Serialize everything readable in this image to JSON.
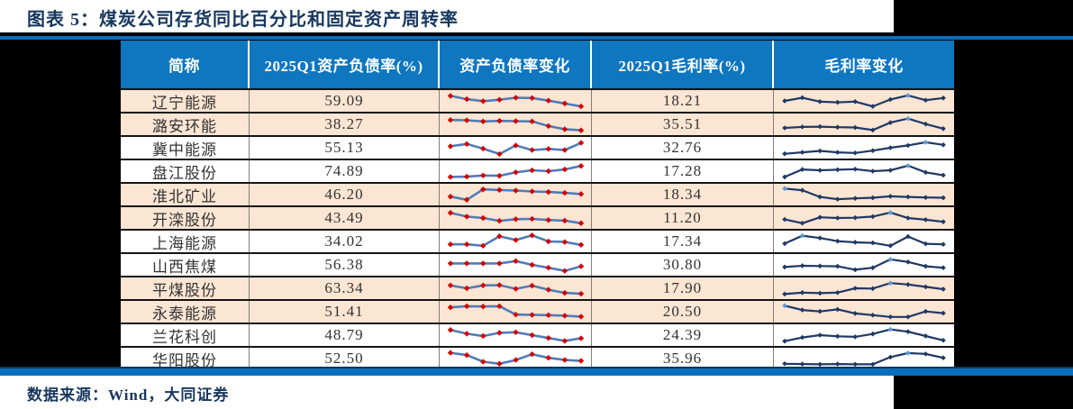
{
  "title": "图表 5：煤炭公司存货同比百分比和固定资产周转率",
  "footer": "数据来源：Wind，大同证券",
  "colors": {
    "page_background": "#000000",
    "band_background": "#ffffff",
    "title_text": "#17375e",
    "rule_blue": "#0a6ebd",
    "header_background": "#0f76c0",
    "header_text": "#ffffff",
    "row_shade": "#fbe5d3",
    "row_plain": "#ffffff",
    "body_text": "#333333",
    "grid_vertical": "#808080",
    "grid_horizontal": "#141414",
    "debt_spark_line": "#4f7cba",
    "debt_spark_marker": "#d40000",
    "margin_spark_line": "#1f3864",
    "margin_spark_marker": "#1f3864",
    "margin_spark_high_marker": "#5b9bd5"
  },
  "chart_data": {
    "type": "table",
    "title": "图表 5：煤炭公司存货同比百分比和固定资产周转率",
    "columns": [
      "简称",
      "2025Q1资产负债率(%)",
      "资产负债率变化",
      "2025Q1毛利率(%)",
      "毛利率变化"
    ],
    "sparkline_note": "trend arrays are normalized 0-1 estimates read from the embedded sparklines; debt trend uses red markers, margin trend uses navy markers with the maximum point highlighted light blue",
    "rows": [
      {
        "name": "辽宁能源",
        "debt_ratio": "59.09",
        "debt_trend": [
          0.85,
          0.62,
          0.48,
          0.58,
          0.72,
          0.7,
          0.52,
          0.32,
          0.12
        ],
        "gross_margin": "18.21",
        "margin_trend": [
          0.5,
          0.72,
          0.45,
          0.4,
          0.45,
          0.12,
          0.6,
          0.88,
          0.55,
          0.7
        ],
        "shaded": true
      },
      {
        "name": "潞安环能",
        "debt_ratio": "38.27",
        "debt_trend": [
          0.8,
          0.78,
          0.7,
          0.74,
          0.72,
          0.7,
          0.38,
          0.16,
          0.08
        ],
        "gross_margin": "35.51",
        "margin_trend": [
          0.25,
          0.32,
          0.34,
          0.3,
          0.28,
          0.1,
          0.62,
          0.9,
          0.52,
          0.2
        ],
        "shaded": true
      },
      {
        "name": "冀中能源",
        "debt_ratio": "55.13",
        "debt_trend": [
          0.6,
          0.76,
          0.44,
          0.06,
          0.66,
          0.34,
          0.42,
          0.34,
          0.84
        ],
        "gross_margin": "32.76",
        "margin_trend": [
          0.08,
          0.18,
          0.28,
          0.18,
          0.14,
          0.3,
          0.5,
          0.66,
          0.88,
          0.7
        ],
        "shaded": false
      },
      {
        "name": "盘江股份",
        "debt_ratio": "74.89",
        "debt_trend": [
          0.1,
          0.12,
          0.2,
          0.18,
          0.42,
          0.56,
          0.5,
          0.62,
          0.86
        ],
        "gross_margin": "17.28",
        "margin_trend": [
          0.1,
          0.62,
          0.56,
          0.6,
          0.64,
          0.5,
          0.56,
          0.88,
          0.42,
          0.22
        ],
        "shaded": false
      },
      {
        "name": "淮北矿业",
        "debt_ratio": "46.20",
        "debt_trend": [
          0.36,
          0.14,
          0.86,
          0.82,
          0.78,
          0.72,
          0.68,
          0.62,
          0.54
        ],
        "gross_margin": "18.34",
        "margin_trend": [
          0.92,
          0.8,
          0.34,
          0.18,
          0.24,
          0.28,
          0.38,
          0.34,
          0.3,
          0.28
        ],
        "shaded": true
      },
      {
        "name": "开滦股份",
        "debt_ratio": "43.49",
        "debt_trend": [
          0.86,
          0.6,
          0.5,
          0.3,
          0.42,
          0.44,
          0.36,
          0.32,
          0.14
        ],
        "gross_margin": "11.20",
        "margin_trend": [
          0.4,
          0.14,
          0.55,
          0.5,
          0.52,
          0.6,
          0.88,
          0.5,
          0.38,
          0.24
        ],
        "shaded": true
      },
      {
        "name": "上海能源",
        "debt_ratio": "34.02",
        "debt_trend": [
          0.3,
          0.3,
          0.2,
          0.86,
          0.6,
          0.92,
          0.5,
          0.46,
          0.26
        ],
        "gross_margin": "17.34",
        "margin_trend": [
          0.35,
          0.9,
          0.74,
          0.52,
          0.44,
          0.4,
          0.2,
          0.84,
          0.34,
          0.3
        ],
        "shaded": false
      },
      {
        "name": "山西焦煤",
        "debt_ratio": "56.38",
        "debt_trend": [
          0.6,
          0.6,
          0.6,
          0.6,
          0.76,
          0.5,
          0.3,
          0.08,
          0.4
        ],
        "gross_margin": "30.80",
        "margin_trend": [
          0.35,
          0.44,
          0.42,
          0.4,
          0.16,
          0.3,
          0.88,
          0.7,
          0.4,
          0.3
        ],
        "shaded": false
      },
      {
        "name": "平煤股份",
        "debt_ratio": "63.34",
        "debt_trend": [
          0.7,
          0.5,
          0.7,
          0.72,
          0.46,
          0.68,
          0.4,
          0.18,
          0.12
        ],
        "gross_margin": "17.90",
        "margin_trend": [
          0.1,
          0.2,
          0.16,
          0.2,
          0.5,
          0.48,
          0.86,
          0.76,
          0.6,
          0.44
        ],
        "shaded": true
      },
      {
        "name": "永泰能源",
        "debt_ratio": "51.41",
        "debt_trend": [
          0.8,
          0.88,
          0.86,
          0.88,
          0.3,
          0.28,
          0.26,
          0.22,
          0.16
        ],
        "gross_margin": "20.50",
        "margin_trend": [
          0.92,
          0.62,
          0.52,
          0.66,
          0.38,
          0.26,
          0.14,
          0.14,
          0.52,
          0.4
        ],
        "shaded": true
      },
      {
        "name": "兰花科创",
        "debt_ratio": "48.79",
        "debt_trend": [
          0.86,
          0.6,
          0.44,
          0.66,
          0.7,
          0.5,
          0.3,
          0.1,
          0.28
        ],
        "gross_margin": "24.39",
        "margin_trend": [
          0.08,
          0.34,
          0.5,
          0.42,
          0.38,
          0.58,
          0.9,
          0.74,
          0.44,
          0.14
        ],
        "shaded": false
      },
      {
        "name": "华阳股份",
        "debt_ratio": "52.50",
        "debt_trend": [
          0.9,
          0.74,
          0.28,
          0.14,
          0.4,
          0.8,
          0.55,
          0.4,
          0.34
        ],
        "gross_margin": "35.96",
        "margin_trend": [
          0.14,
          0.12,
          0.1,
          0.12,
          0.1,
          0.1,
          0.6,
          0.88,
          0.82,
          0.55
        ],
        "shaded": false
      }
    ]
  }
}
